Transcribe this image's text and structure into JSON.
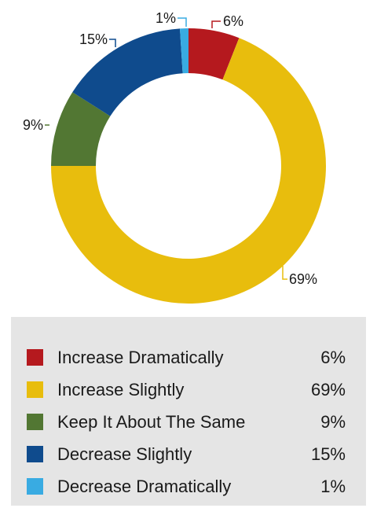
{
  "chart_data": {
    "type": "pie",
    "categories": [
      "Increase Dramatically",
      "Increase Slightly",
      "Keep It About The Same",
      "Decrease Slightly",
      "Decrease Dramatically"
    ],
    "values": [
      6,
      69,
      9,
      15,
      1
    ],
    "value_labels": [
      "6%",
      "69%",
      "9%",
      "15%",
      "1%"
    ],
    "colors": [
      "#b5191e",
      "#e8bd0d",
      "#527733",
      "#0f4b8d",
      "#39abe2"
    ],
    "donut": true,
    "legend_position": "bottom"
  },
  "legend": {
    "items": [
      {
        "label": "Increase Dramatically",
        "value": "6%",
        "color": "#b5191e"
      },
      {
        "label": "Increase Slightly",
        "value": "69%",
        "color": "#e8bd0d"
      },
      {
        "label": "Keep It About The Same",
        "value": "9%",
        "color": "#527733"
      },
      {
        "label": "Decrease Slightly",
        "value": "15%",
        "color": "#0f4b8d"
      },
      {
        "label": "Decrease Dramatically",
        "value": "1%",
        "color": "#39abe2"
      }
    ]
  }
}
